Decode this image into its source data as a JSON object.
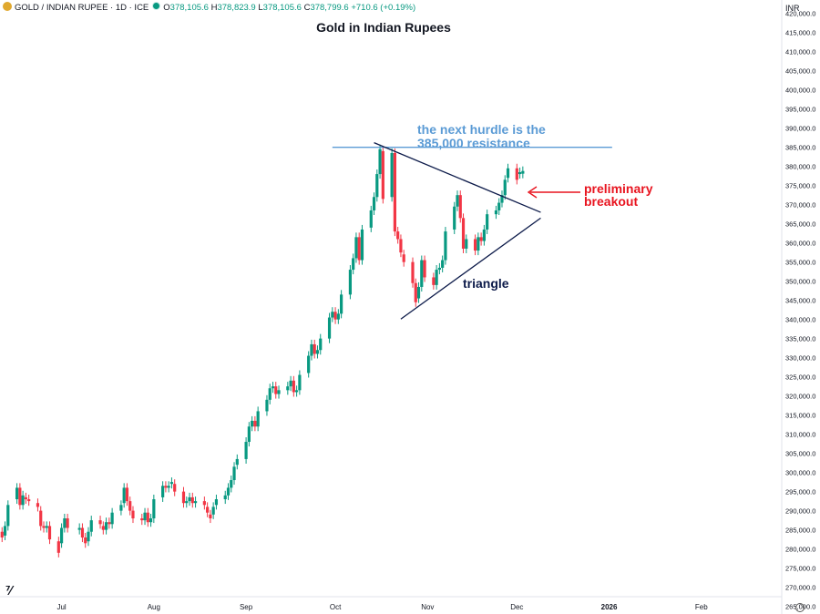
{
  "header": {
    "symbol": "GOLD / INDIAN RUPEE · 1D · ICE",
    "o_label": "O",
    "o_value": "378,105.6",
    "h_label": "H",
    "h_value": "378,823.9",
    "l_label": "L",
    "l_value": "378,105.6",
    "c_label": "C",
    "c_value": "378,799.6",
    "change": "+710.6 (+0.19%)",
    "currency": "INR"
  },
  "colors": {
    "up": "#089981",
    "down": "#f23645",
    "resistance": "#5b9bd5",
    "triangle": "#0d1b4a",
    "breakout": "#e8141f"
  },
  "icons": {
    "symbol_icon": "gold-coin-icon",
    "market_status": "market-open-dot-icon",
    "logo": "tradingview-logo-icon",
    "settings": "settings-icon"
  },
  "chart_data": {
    "type": "candlestick",
    "title": "Gold in Indian Rupees",
    "ylim": [
      263000,
      423500
    ],
    "y_ticks": [
      "265,000.0",
      "270,000.0",
      "275,000.0",
      "280,000.0",
      "285,000.0",
      "290,000.0",
      "295,000.0",
      "300,000.0",
      "305,000.0",
      "310,000.0",
      "315,000.0",
      "320,000.0",
      "325,000.0",
      "330,000.0",
      "335,000.0",
      "340,000.0",
      "345,000.0",
      "350,000.0",
      "355,000.0",
      "360,000.0",
      "365,000.0",
      "370,000.0",
      "375,000.0",
      "380,000.0",
      "385,000.0",
      "390,000.0",
      "395,000.0",
      "400,000.0",
      "405,000.0",
      "410,000.0",
      "415,000.0",
      "420,000.0"
    ],
    "x_ticks": [
      {
        "label": "Jul",
        "date": "2025-07-01"
      },
      {
        "label": "Aug",
        "date": "2025-08-01"
      },
      {
        "label": "Sep",
        "date": "2025-09-01"
      },
      {
        "label": "Oct",
        "date": "2025-10-01"
      },
      {
        "label": "Nov",
        "date": "2025-11-01"
      },
      {
        "label": "Dec",
        "date": "2025-12-01"
      },
      {
        "label": "2026",
        "date": "2026-01-01"
      },
      {
        "label": "Feb",
        "date": "2026-02-01"
      }
    ],
    "x_range": [
      "2025-06-10",
      "2026-02-28"
    ],
    "candles": [
      {
        "d": "2025-06-11",
        "o": 284500,
        "c": 283000
      },
      {
        "d": "2025-06-12",
        "o": 283500,
        "c": 286000
      },
      {
        "d": "2025-06-13",
        "o": 286000,
        "c": 291500
      },
      {
        "d": "2025-06-16",
        "o": 293000,
        "c": 296000
      },
      {
        "d": "2025-06-17",
        "o": 296000,
        "c": 291500
      },
      {
        "d": "2025-06-18",
        "o": 291500,
        "c": 294000
      },
      {
        "d": "2025-06-19",
        "o": 293500,
        "c": 293000
      },
      {
        "d": "2025-06-20",
        "o": 293000,
        "c": 292500
      },
      {
        "d": "2025-06-23",
        "o": 292000,
        "c": 291000
      },
      {
        "d": "2025-06-24",
        "o": 290000,
        "c": 286000
      },
      {
        "d": "2025-06-25",
        "o": 286000,
        "c": 285500
      },
      {
        "d": "2025-06-26",
        "o": 285500,
        "c": 286000
      },
      {
        "d": "2025-06-27",
        "o": 286000,
        "c": 282500
      },
      {
        "d": "2025-06-30",
        "o": 282000,
        "c": 279000
      },
      {
        "d": "2025-07-01",
        "o": 281500,
        "c": 285500
      },
      {
        "d": "2025-07-02",
        "o": 285500,
        "c": 288000
      },
      {
        "d": "2025-07-03",
        "o": 288000,
        "c": 285500
      },
      {
        "d": "2025-07-07",
        "o": 285000,
        "c": 285500
      },
      {
        "d": "2025-07-08",
        "o": 285500,
        "c": 283000
      },
      {
        "d": "2025-07-09",
        "o": 283000,
        "c": 281500
      },
      {
        "d": "2025-07-10",
        "o": 282000,
        "c": 284500
      },
      {
        "d": "2025-07-11",
        "o": 284500,
        "c": 287500
      },
      {
        "d": "2025-07-14",
        "o": 287500,
        "c": 286500
      },
      {
        "d": "2025-07-15",
        "o": 286000,
        "c": 285000
      },
      {
        "d": "2025-07-16",
        "o": 285000,
        "c": 287000
      },
      {
        "d": "2025-07-17",
        "o": 287000,
        "c": 286500
      },
      {
        "d": "2025-07-18",
        "o": 286500,
        "c": 289500
      },
      {
        "d": "2025-07-21",
        "o": 290000,
        "c": 291500
      },
      {
        "d": "2025-07-22",
        "o": 292000,
        "c": 296000
      },
      {
        "d": "2025-07-23",
        "o": 296000,
        "c": 292500
      },
      {
        "d": "2025-07-24",
        "o": 292500,
        "c": 290000
      },
      {
        "d": "2025-07-25",
        "o": 290000,
        "c": 288000
      },
      {
        "d": "2025-07-28",
        "o": 288000,
        "c": 287500
      },
      {
        "d": "2025-07-29",
        "o": 287500,
        "c": 289500
      },
      {
        "d": "2025-07-30",
        "o": 289500,
        "c": 287000
      },
      {
        "d": "2025-07-31",
        "o": 287000,
        "c": 288000
      },
      {
        "d": "2025-08-01",
        "o": 288000,
        "c": 293000
      },
      {
        "d": "2025-08-04",
        "o": 293500,
        "c": 296500
      },
      {
        "d": "2025-08-05",
        "o": 296500,
        "c": 296000
      },
      {
        "d": "2025-08-06",
        "o": 296000,
        "c": 296500
      },
      {
        "d": "2025-08-07",
        "o": 297000,
        "c": 297500
      },
      {
        "d": "2025-08-08",
        "o": 297000,
        "c": 295000
      },
      {
        "d": "2025-08-11",
        "o": 295000,
        "c": 292000
      },
      {
        "d": "2025-08-12",
        "o": 292000,
        "c": 292500
      },
      {
        "d": "2025-08-13",
        "o": 292500,
        "c": 293500
      },
      {
        "d": "2025-08-14",
        "o": 293500,
        "c": 292000
      },
      {
        "d": "2025-08-15",
        "o": 292000,
        "c": 292500
      },
      {
        "d": "2025-08-18",
        "o": 292500,
        "c": 291500
      },
      {
        "d": "2025-08-19",
        "o": 291000,
        "c": 289500
      },
      {
        "d": "2025-08-20",
        "o": 289000,
        "c": 288000
      },
      {
        "d": "2025-08-21",
        "o": 289000,
        "c": 291000
      },
      {
        "d": "2025-08-22",
        "o": 291500,
        "c": 293000
      },
      {
        "d": "2025-08-25",
        "o": 293000,
        "c": 294000
      },
      {
        "d": "2025-08-26",
        "o": 294000,
        "c": 296000
      },
      {
        "d": "2025-08-27",
        "o": 296000,
        "c": 298000
      },
      {
        "d": "2025-08-28",
        "o": 298000,
        "c": 301500
      },
      {
        "d": "2025-08-29",
        "o": 302000,
        "c": 303500
      },
      {
        "d": "2025-09-01",
        "o": 303500,
        "c": 308000
      },
      {
        "d": "2025-09-02",
        "o": 308000,
        "c": 312000
      },
      {
        "d": "2025-09-03",
        "o": 312000,
        "c": 313500
      },
      {
        "d": "2025-09-04",
        "o": 313500,
        "c": 312000
      },
      {
        "d": "2025-09-05",
        "o": 312000,
        "c": 316000
      },
      {
        "d": "2025-09-08",
        "o": 316000,
        "c": 319000
      },
      {
        "d": "2025-09-09",
        "o": 319000,
        "c": 322000
      },
      {
        "d": "2025-09-10",
        "o": 322000,
        "c": 322500
      },
      {
        "d": "2025-09-11",
        "o": 322500,
        "c": 320500
      },
      {
        "d": "2025-09-12",
        "o": 320500,
        "c": 321500
      },
      {
        "d": "2025-09-15",
        "o": 321500,
        "c": 322500
      },
      {
        "d": "2025-09-16",
        "o": 322500,
        "c": 324000
      },
      {
        "d": "2025-09-17",
        "o": 324000,
        "c": 321000
      },
      {
        "d": "2025-09-18",
        "o": 321000,
        "c": 321500
      },
      {
        "d": "2025-09-19",
        "o": 321500,
        "c": 325500
      },
      {
        "d": "2025-09-22",
        "o": 326000,
        "c": 330500
      },
      {
        "d": "2025-09-23",
        "o": 330500,
        "c": 333500
      },
      {
        "d": "2025-09-24",
        "o": 333500,
        "c": 331000
      },
      {
        "d": "2025-09-25",
        "o": 331000,
        "c": 332000
      },
      {
        "d": "2025-09-26",
        "o": 332000,
        "c": 335000
      },
      {
        "d": "2025-09-29",
        "o": 335000,
        "c": 340500
      },
      {
        "d": "2025-09-30",
        "o": 340500,
        "c": 342000
      },
      {
        "d": "2025-10-01",
        "o": 342000,
        "c": 340000
      },
      {
        "d": "2025-10-02",
        "o": 340000,
        "c": 341500
      },
      {
        "d": "2025-10-03",
        "o": 341500,
        "c": 346500
      },
      {
        "d": "2025-10-06",
        "o": 346500,
        "c": 353000
      },
      {
        "d": "2025-10-07",
        "o": 353000,
        "c": 356000
      },
      {
        "d": "2025-10-08",
        "o": 356000,
        "c": 361500
      },
      {
        "d": "2025-10-09",
        "o": 361500,
        "c": 355500
      },
      {
        "d": "2025-10-10",
        "o": 355500,
        "c": 363500
      },
      {
        "d": "2025-10-13",
        "o": 364000,
        "c": 368500
      },
      {
        "d": "2025-10-14",
        "o": 368500,
        "c": 372000
      },
      {
        "d": "2025-10-15",
        "o": 372000,
        "c": 378000
      },
      {
        "d": "2025-10-16",
        "o": 378000,
        "c": 384500
      },
      {
        "d": "2025-10-17",
        "o": 384000,
        "c": 371500
      },
      {
        "d": "2025-10-20",
        "o": 372000,
        "c": 383500
      },
      {
        "d": "2025-10-21",
        "o": 383500,
        "c": 363000
      },
      {
        "d": "2025-10-22",
        "o": 363000,
        "c": 361000
      },
      {
        "d": "2025-10-23",
        "o": 361000,
        "c": 357500
      },
      {
        "d": "2025-10-24",
        "o": 357000,
        "c": 355000
      },
      {
        "d": "2025-10-27",
        "o": 355000,
        "c": 349500
      },
      {
        "d": "2025-10-28",
        "o": 349500,
        "c": 344500
      },
      {
        "d": "2025-10-29",
        "o": 345500,
        "c": 348500
      },
      {
        "d": "2025-10-30",
        "o": 348500,
        "c": 355500
      },
      {
        "d": "2025-10-31",
        "o": 355500,
        "c": 351000
      },
      {
        "d": "2025-11-03",
        "o": 351000,
        "c": 349000
      },
      {
        "d": "2025-11-04",
        "o": 349000,
        "c": 353000
      },
      {
        "d": "2025-11-05",
        "o": 353000,
        "c": 353500
      },
      {
        "d": "2025-11-06",
        "o": 353500,
        "c": 355500
      },
      {
        "d": "2025-11-07",
        "o": 355500,
        "c": 363000
      },
      {
        "d": "2025-11-10",
        "o": 363500,
        "c": 369500
      },
      {
        "d": "2025-11-11",
        "o": 369500,
        "c": 372500
      },
      {
        "d": "2025-11-12",
        "o": 372500,
        "c": 366500
      },
      {
        "d": "2025-11-13",
        "o": 366500,
        "c": 358500
      },
      {
        "d": "2025-11-14",
        "o": 358500,
        "c": 361000
      },
      {
        "d": "2025-11-17",
        "o": 361000,
        "c": 358000
      },
      {
        "d": "2025-11-18",
        "o": 358000,
        "c": 361500
      },
      {
        "d": "2025-11-19",
        "o": 361500,
        "c": 360500
      },
      {
        "d": "2025-11-20",
        "o": 360500,
        "c": 363500
      },
      {
        "d": "2025-11-21",
        "o": 363500,
        "c": 367500
      },
      {
        "d": "2025-11-24",
        "o": 367500,
        "c": 368500
      },
      {
        "d": "2025-11-25",
        "o": 368500,
        "c": 370500
      },
      {
        "d": "2025-11-26",
        "o": 370500,
        "c": 372500
      },
      {
        "d": "2025-11-27",
        "o": 372500,
        "c": 376500
      },
      {
        "d": "2025-11-28",
        "o": 377000,
        "c": 379500
      },
      {
        "d": "2025-12-01",
        "o": 379500,
        "c": 376500
      },
      {
        "d": "2025-12-02",
        "o": 378000,
        "c": 378500
      },
      {
        "d": "2025-12-03",
        "o": 378100,
        "c": 378800
      }
    ],
    "annotations": {
      "resistance_text_1": "the next hurdle is the",
      "resistance_text_2": "385,000 resistance",
      "resistance_level": 385000,
      "breakout_text_1": "preliminary",
      "breakout_text_2": "breakout",
      "triangle_text": "triangle",
      "triangle_upper": [
        {
          "d": "2025-10-14",
          "v": 386200
        },
        {
          "d": "2025-12-09",
          "v": 368000
        }
      ],
      "triangle_lower": [
        {
          "d": "2025-10-23",
          "v": 340100
        },
        {
          "d": "2025-12-09",
          "v": 366500
        }
      ],
      "resistance_span": [
        "2025-09-30",
        "2026-01-02"
      ]
    }
  }
}
